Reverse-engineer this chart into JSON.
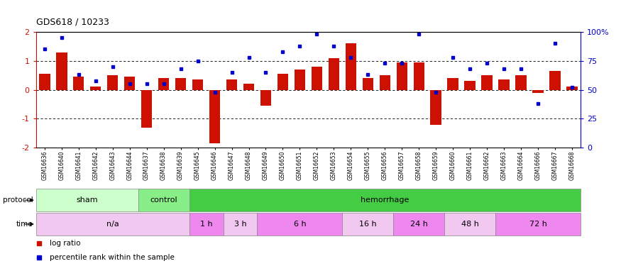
{
  "title": "GDS618 / 10233",
  "samples": [
    "GSM16636",
    "GSM16640",
    "GSM16641",
    "GSM16642",
    "GSM16643",
    "GSM16644",
    "GSM16637",
    "GSM16638",
    "GSM16639",
    "GSM16645",
    "GSM16646",
    "GSM16647",
    "GSM16648",
    "GSM16649",
    "GSM16650",
    "GSM16651",
    "GSM16652",
    "GSM16653",
    "GSM16654",
    "GSM16655",
    "GSM16656",
    "GSM16657",
    "GSM16658",
    "GSM16659",
    "GSM16660",
    "GSM16661",
    "GSM16662",
    "GSM16663",
    "GSM16664",
    "GSM16666",
    "GSM16667",
    "GSM16668"
  ],
  "log_ratio": [
    0.55,
    1.3,
    0.45,
    0.12,
    0.5,
    0.45,
    -1.3,
    0.4,
    0.4,
    0.35,
    -1.85,
    0.35,
    0.2,
    -0.55,
    0.55,
    0.7,
    0.8,
    1.1,
    1.6,
    0.4,
    0.5,
    0.95,
    0.95,
    -1.2,
    0.4,
    0.3,
    0.5,
    0.35,
    0.5,
    -0.12,
    0.65,
    0.12
  ],
  "percentile_rank": [
    85,
    95,
    63,
    58,
    70,
    55,
    55,
    55,
    68,
    75,
    48,
    65,
    78,
    65,
    83,
    88,
    98,
    88,
    78,
    63,
    73,
    73,
    98,
    48,
    78,
    68,
    73,
    68,
    68,
    38,
    90,
    52
  ],
  "protocol_groups": [
    {
      "label": "sham",
      "start": 0,
      "end": 6,
      "color": "#ccffcc"
    },
    {
      "label": "control",
      "start": 6,
      "end": 9,
      "color": "#88ee88"
    },
    {
      "label": "hemorrhage",
      "start": 9,
      "end": 32,
      "color": "#44cc44"
    }
  ],
  "time_groups": [
    {
      "label": "n/a",
      "start": 0,
      "end": 9,
      "color": "#f0c8f0"
    },
    {
      "label": "1 h",
      "start": 9,
      "end": 11,
      "color": "#ee88ee"
    },
    {
      "label": "3 h",
      "start": 11,
      "end": 13,
      "color": "#f0c8f0"
    },
    {
      "label": "6 h",
      "start": 13,
      "end": 18,
      "color": "#ee88ee"
    },
    {
      "label": "16 h",
      "start": 18,
      "end": 21,
      "color": "#f0c8f0"
    },
    {
      "label": "24 h",
      "start": 21,
      "end": 24,
      "color": "#ee88ee"
    },
    {
      "label": "48 h",
      "start": 24,
      "end": 27,
      "color": "#f0c8f0"
    },
    {
      "label": "72 h",
      "start": 27,
      "end": 32,
      "color": "#ee88ee"
    }
  ],
  "bar_color": "#cc1100",
  "dot_color": "#0000cc",
  "ylim_left": [
    -2,
    2
  ],
  "ylim_right": [
    0,
    100
  ],
  "yticks_left": [
    -2,
    -1,
    0,
    1,
    2
  ],
  "ytick_labels_left": [
    "-2",
    "-1",
    "0",
    "1",
    "2"
  ],
  "yticks_right": [
    0,
    25,
    50,
    75,
    100
  ],
  "ytick_labels_right": [
    "0",
    "25",
    "50",
    "75",
    "100%"
  ],
  "hlines": [
    -1,
    0,
    1
  ],
  "legend_items": [
    {
      "label": "log ratio",
      "color": "#cc1100"
    },
    {
      "label": "percentile rank within the sample",
      "color": "#0000cc"
    }
  ]
}
